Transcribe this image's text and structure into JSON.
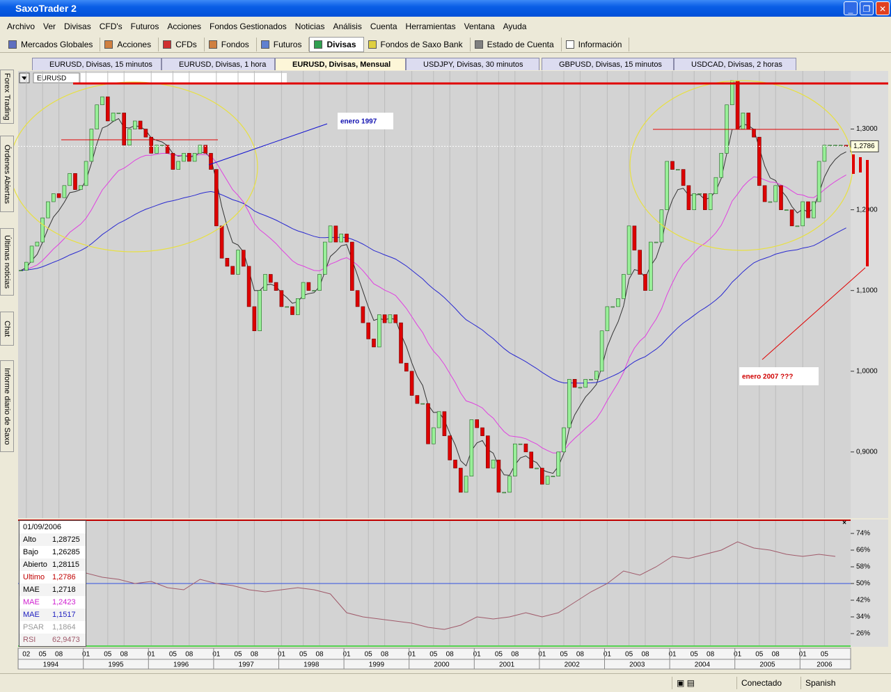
{
  "window": {
    "title": "SaxoTrader 2"
  },
  "menu": [
    "Archivo",
    "Ver",
    "Divisas",
    "CFD's",
    "Futuros",
    "Acciones",
    "Fondos Gestionados",
    "Noticias",
    "Análisis",
    "Cuenta",
    "Herramientas",
    "Ventana",
    "Ayuda"
  ],
  "toolbar": [
    "Mercados Globales",
    "Acciones",
    "CFDs",
    "Fondos",
    "Futuros",
    "Divisas",
    "Fondos de Saxo Bank",
    "Estado de Cuenta",
    "Información"
  ],
  "side_tabs": [
    "Forex Trading",
    "Órdenes Abiertas",
    "Últimas noticias",
    "Chat",
    "Informe diario de Saxo"
  ],
  "chart_tabs": [
    "EURUSD, Divisas, 15 minutos",
    "EURUSD, Divisas, 1 hora",
    "EURUSD, Divisas, Mensual",
    "USDJPY, Divisas, 30 minutos",
    "GBPUSD, Divisas, 15 minutos",
    "USDCAD, Divisas, 2 horas"
  ],
  "symbol": "EURUSD",
  "chart_data": {
    "type": "candlestick",
    "closes": [
      1.125,
      1.135,
      1.155,
      1.16,
      1.19,
      1.21,
      1.22,
      1.215,
      1.23,
      1.245,
      1.225,
      1.23,
      1.26,
      1.3,
      1.33,
      1.34,
      1.31,
      1.32,
      1.32,
      1.28,
      1.3,
      1.31,
      1.3,
      1.29,
      1.27,
      1.28,
      1.28,
      1.27,
      1.25,
      1.26,
      1.27,
      1.26,
      1.27,
      1.28,
      1.27,
      1.25,
      1.18,
      1.14,
      1.13,
      1.12,
      1.15,
      1.13,
      1.08,
      1.05,
      1.1,
      1.12,
      1.11,
      1.1,
      1.08,
      1.08,
      1.07,
      1.09,
      1.11,
      1.1,
      1.1,
      1.12,
      1.16,
      1.18,
      1.16,
      1.17,
      1.16,
      1.1,
      1.08,
      1.06,
      1.04,
      1.03,
      1.07,
      1.06,
      1.07,
      1.06,
      1.01,
      1.0,
      0.97,
      0.96,
      0.96,
      0.91,
      0.93,
      0.95,
      0.92,
      0.89,
      0.88,
      0.85,
      0.87,
      0.94,
      0.93,
      0.92,
      0.88,
      0.89,
      0.85,
      0.85,
      0.87,
      0.91,
      0.91,
      0.9,
      0.88,
      0.88,
      0.86,
      0.87,
      0.87,
      0.9,
      0.93,
      0.99,
      0.98,
      0.98,
      0.99,
      0.99,
      1.0,
      1.05,
      1.08,
      1.08,
      1.09,
      1.12,
      1.18,
      1.15,
      1.12,
      1.1,
      1.16,
      1.16,
      1.2,
      1.26,
      1.25,
      1.25,
      1.23,
      1.2,
      1.22,
      1.22,
      1.2,
      1.22,
      1.24,
      1.27,
      1.33,
      1.36,
      1.3,
      1.32,
      1.3,
      1.29,
      1.23,
      1.21,
      1.21,
      1.23,
      1.2,
      1.2,
      1.18,
      1.18,
      1.21,
      1.19,
      1.21,
      1.26,
      1.28,
      1.28,
      1.28,
      1.28,
      1.2786
    ],
    "up_color": "#98f098",
    "down_color": "#dd0000",
    "ma_colors": [
      "#333333",
      "#e040e0",
      "#2828d0"
    ],
    "ylim": [
      0.818,
      1.372
    ],
    "yticks": [
      {
        "value": 0.9,
        "label": "0,9000"
      },
      {
        "value": 1.0,
        "label": "1,0000"
      },
      {
        "value": 1.1,
        "label": "1,1000"
      },
      {
        "value": 1.2,
        "label": "1,2000"
      },
      {
        "value": 1.3,
        "label": "1,3000"
      }
    ],
    "xticks": [
      {
        "value": 1,
        "label": "02"
      },
      {
        "value": 4,
        "label": "05"
      },
      {
        "value": 7,
        "label": "08"
      },
      {
        "value": 12,
        "label": "01"
      },
      {
        "value": 16,
        "label": "05"
      },
      {
        "value": 19,
        "label": "08"
      },
      {
        "value": 24,
        "label": "01"
      },
      {
        "value": 28,
        "label": "05"
      },
      {
        "value": 31,
        "label": "08"
      },
      {
        "value": 36,
        "label": "01"
      },
      {
        "value": 40,
        "label": "05"
      },
      {
        "value": 43,
        "label": "08"
      },
      {
        "value": 48,
        "label": "01"
      },
      {
        "value": 52,
        "label": "05"
      },
      {
        "value": 55,
        "label": "08"
      },
      {
        "value": 60,
        "label": "01"
      },
      {
        "value": 64,
        "label": "05"
      },
      {
        "value": 67,
        "label": "08"
      },
      {
        "value": 72,
        "label": "01"
      },
      {
        "value": 76,
        "label": "05"
      },
      {
        "value": 79,
        "label": "08"
      },
      {
        "value": 84,
        "label": "01"
      },
      {
        "value": 88,
        "label": "05"
      },
      {
        "value": 91,
        "label": "08"
      },
      {
        "value": 96,
        "label": "01"
      },
      {
        "value": 100,
        "label": "05"
      },
      {
        "value": 103,
        "label": "08"
      },
      {
        "value": 108,
        "label": "01"
      },
      {
        "value": 112,
        "label": "05"
      },
      {
        "value": 115,
        "label": "08"
      },
      {
        "value": 120,
        "label": "01"
      },
      {
        "value": 124,
        "label": "05"
      },
      {
        "value": 127,
        "label": "08"
      },
      {
        "value": 132,
        "label": "01"
      },
      {
        "value": 136,
        "label": "05"
      },
      {
        "value": 139,
        "label": "08"
      },
      {
        "value": 144,
        "label": "01"
      },
      {
        "value": 148,
        "label": "05"
      }
    ],
    "years": [
      1994,
      1995,
      1996,
      1997,
      1998,
      1999,
      2000,
      2001,
      2002,
      2003,
      2004,
      2005,
      2006
    ],
    "annotations": [
      "enero 1997",
      "enero 2007 ???"
    ],
    "last_price_label": {
      "value": 1.2786,
      "label": "1,2786"
    },
    "rsi": {
      "type": "line",
      "color": "#a05a6a",
      "values": [
        52,
        55,
        56,
        57,
        55,
        53,
        52,
        50,
        51,
        48,
        47,
        52,
        50,
        49,
        47,
        46,
        47,
        48,
        47,
        45,
        36,
        34,
        33,
        32,
        31,
        29,
        28,
        30,
        34,
        33,
        34,
        36,
        34,
        36,
        41,
        46,
        50,
        56,
        54,
        58,
        63,
        62,
        64,
        66,
        70,
        67,
        66,
        64,
        63,
        64,
        63
      ],
      "midline": 50,
      "ylim": [
        19.67,
        80.67
      ],
      "yticks": [
        {
          "value": 26,
          "label": "26%"
        },
        {
          "value": 34,
          "label": "34%"
        },
        {
          "value": 42,
          "label": "42%"
        },
        {
          "value": 50,
          "label": "50%"
        },
        {
          "value": 58,
          "label": "58%"
        },
        {
          "value": 66,
          "label": "66%"
        },
        {
          "value": 74,
          "label": "74%"
        }
      ]
    }
  },
  "info_panel": {
    "date": "01/09/2006",
    "rows": [
      {
        "label": "Alto",
        "value": "1,28725",
        "color": "#000000"
      },
      {
        "label": "Bajo",
        "value": "1,26285",
        "color": "#000000"
      },
      {
        "label": "Abierto",
        "value": "1,28115",
        "color": "#000000"
      },
      {
        "label": "Ultimo",
        "value": "1,2786",
        "color": "#c00000"
      },
      {
        "label": "MAE",
        "value": "1,2718",
        "color": "#000000"
      },
      {
        "label": "MAE",
        "value": "1,2423",
        "color": "#d020d0"
      },
      {
        "label": "MAE",
        "value": "1,1517",
        "color": "#2020c0"
      },
      {
        "label": "PSAR",
        "value": "1,1864",
        "color": "#999999"
      },
      {
        "label": "RSI",
        "value": "62,9473",
        "color": "#a05a6a"
      }
    ]
  },
  "status": {
    "connection": "Conectado",
    "language": "Spanish"
  }
}
